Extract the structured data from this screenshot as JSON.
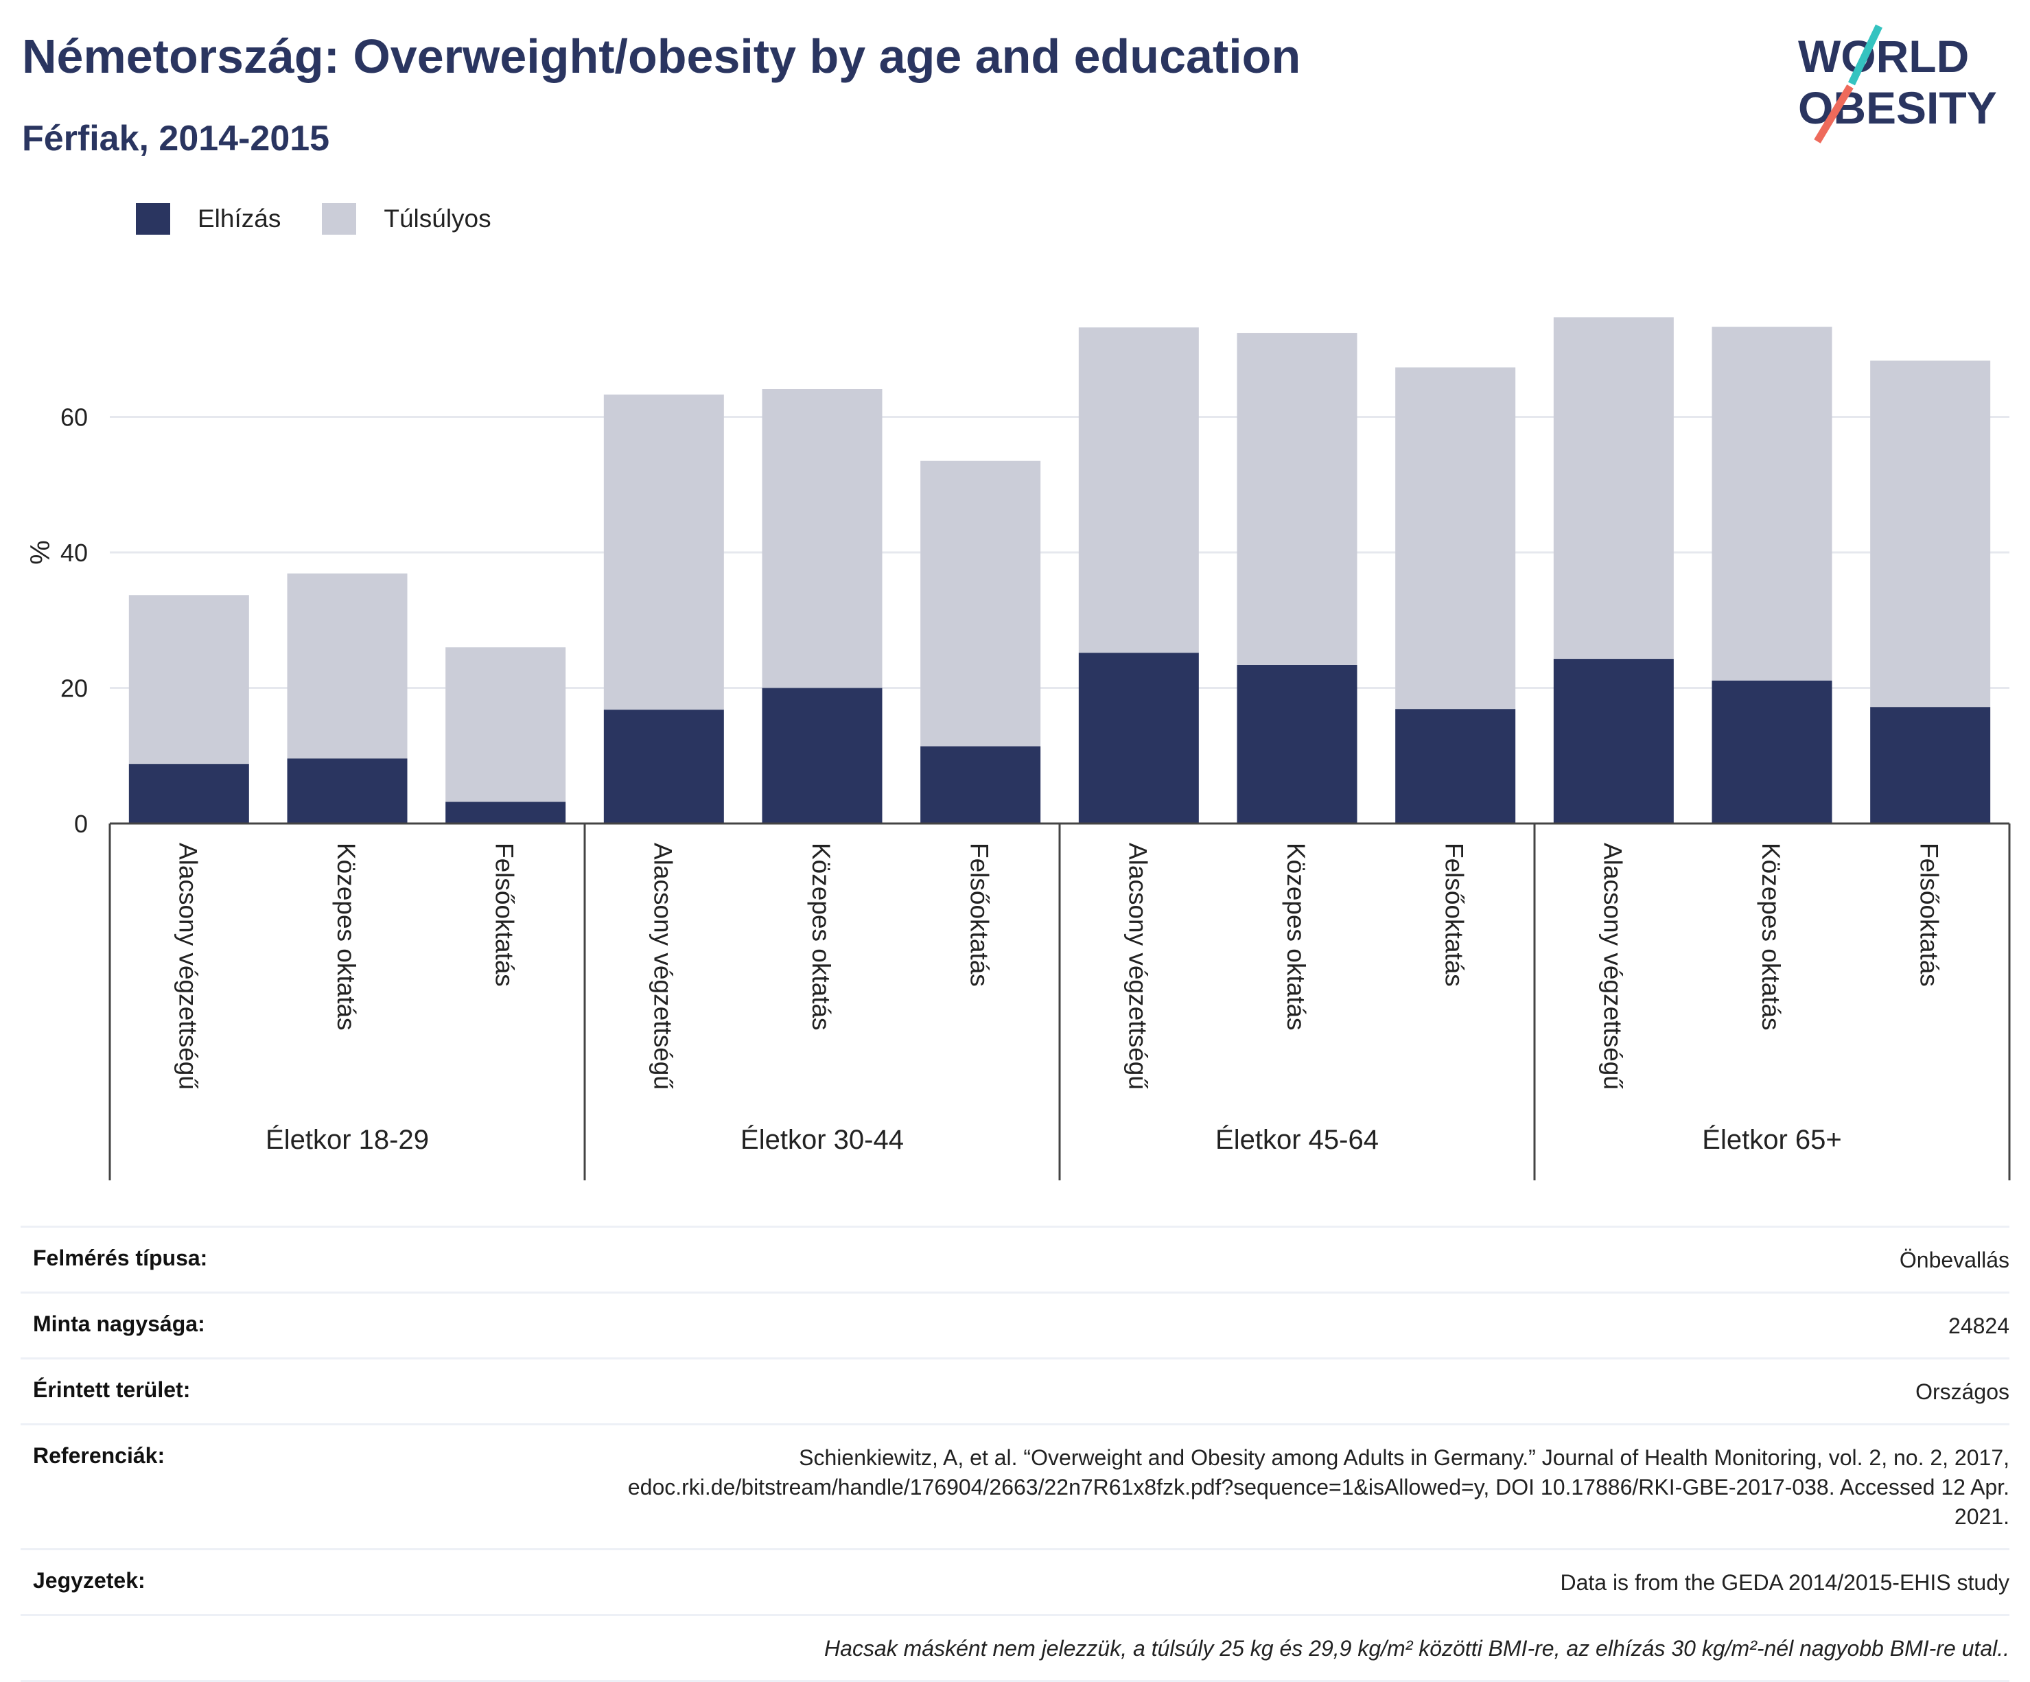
{
  "header": {
    "title": "Németország: Overweight/obesity by age and education",
    "subtitle": "Férfiak, 2014-2015"
  },
  "logo": {
    "line1": "WORLD",
    "line2": "OBESITY",
    "slash_colors": [
      "#34c3c0",
      "#ee6a5b"
    ]
  },
  "legend": [
    {
      "label": "Elhízás",
      "color": "#2a3560"
    },
    {
      "label": "Túlsúlyos",
      "color": "#cbcdd8"
    }
  ],
  "chart_data": {
    "type": "bar",
    "stacked": true,
    "ylabel": "%",
    "ylim": [
      0,
      80
    ],
    "yticks": [
      0,
      20,
      40,
      60
    ],
    "grid": true,
    "legend_position": "top-left",
    "groups": [
      {
        "label": "Életkor 18-29",
        "categories": [
          "Alacsony végzettségű",
          "Közepes oktatás",
          "Felsőoktatás"
        ]
      },
      {
        "label": "Életkor 30-44",
        "categories": [
          "Alacsony végzettségű",
          "Közepes oktatás",
          "Felsőoktatás"
        ]
      },
      {
        "label": "Életkor 45-64",
        "categories": [
          "Alacsony végzettségű",
          "Közepes oktatás",
          "Felsőoktatás"
        ]
      },
      {
        "label": "Életkor 65+",
        "categories": [
          "Alacsony végzettségű",
          "Közepes oktatás",
          "Felsőoktatás"
        ]
      }
    ],
    "series": [
      {
        "name": "Elhízás",
        "color": "#2a3560",
        "values": [
          8.8,
          9.6,
          3.2,
          16.8,
          20.0,
          11.4,
          25.2,
          23.4,
          16.9,
          24.3,
          21.1,
          17.2
        ]
      },
      {
        "name": "Túlsúlyos",
        "color": "#cbcdd8",
        "values": [
          24.9,
          27.3,
          22.8,
          46.5,
          44.1,
          42.1,
          48.0,
          49.0,
          50.4,
          50.4,
          52.2,
          51.1
        ]
      }
    ]
  },
  "meta": [
    {
      "key": "Felmérés típusa:",
      "value": "Önbevallás"
    },
    {
      "key": "Minta nagysága:",
      "value": "24824"
    },
    {
      "key": "Érintett terület:",
      "value": "Országos"
    },
    {
      "key": "Referenciák:",
      "value": "Schienkiewitz, A, et al. “Overweight and Obesity among Adults in Germany.” Journal of Health Monitoring, vol. 2, no. 2, 2017, edoc.rki.de/bitstream/handle/176904/2663/22n7R61x8fzk.pdf?sequence=1&isAllowed=y, DOI 10.17886/RKI-GBE-2017-038. Accessed 12 Apr. 2021."
    },
    {
      "key": "Jegyzetek:",
      "value": "Data is from the GEDA 2014/2015-EHIS study"
    }
  ],
  "footnote": "Hacsak másként nem jelezzük, a túlsúly 25 kg és 29,9 kg/m² közötti BMI-re, az elhízás 30 kg/m²-nél nagyobb BMI-re utal.."
}
